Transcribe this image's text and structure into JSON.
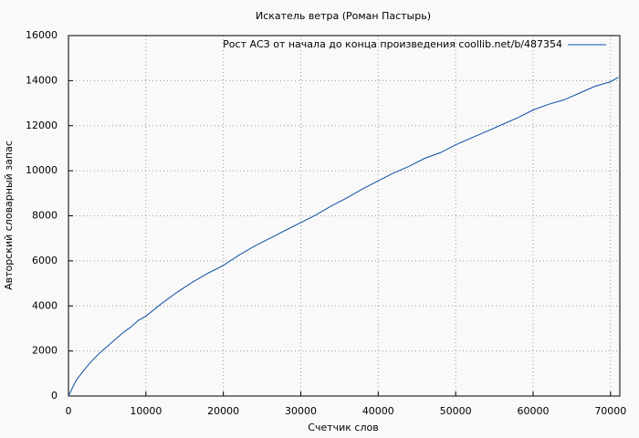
{
  "chart_data": {
    "type": "line",
    "title": "Искатель ветра (Роман Пастырь)",
    "x_label": "Счетчик слов",
    "y_label": "Авторский словарный запас",
    "x": [
      0,
      1000,
      2000,
      3000,
      4000,
      5000,
      6000,
      7000,
      8000,
      9000,
      10000,
      12000,
      14000,
      16000,
      18000,
      20000,
      22000,
      24000,
      26000,
      28000,
      30000,
      32000,
      34000,
      36000,
      38000,
      40000,
      42000,
      44000,
      46000,
      48000,
      50000,
      52000,
      54000,
      56000,
      58000,
      60000,
      62000,
      64000,
      66000,
      68000,
      70000,
      71000
    ],
    "series": [
      {
        "name": "Рост АСЗ от начала до конца произведения coollib.net/b/487354",
        "color": "#0b4ea2",
        "values": [
          0,
          700,
          1150,
          1550,
          1900,
          2200,
          2500,
          2800,
          3050,
          3350,
          3550,
          4100,
          4600,
          5050,
          5450,
          5800,
          6250,
          6650,
          7000,
          7350,
          7700,
          8050,
          8450,
          8800,
          9200,
          9550,
          9900,
          10200,
          10550,
          10800,
          11150,
          11450,
          11750,
          12050,
          12350,
          12700,
          12950,
          13150,
          13450,
          13750,
          13950,
          14150
        ]
      }
    ],
    "xlim": [
      0,
      71200
    ],
    "xticks": [
      0,
      10000,
      20000,
      30000,
      40000,
      50000,
      60000,
      70000
    ],
    "ylim": [
      0,
      16000
    ],
    "yticks": [
      0,
      2000,
      4000,
      6000,
      8000,
      10000,
      12000,
      14000,
      16000
    ],
    "grid": true,
    "legend": "upper-right"
  }
}
